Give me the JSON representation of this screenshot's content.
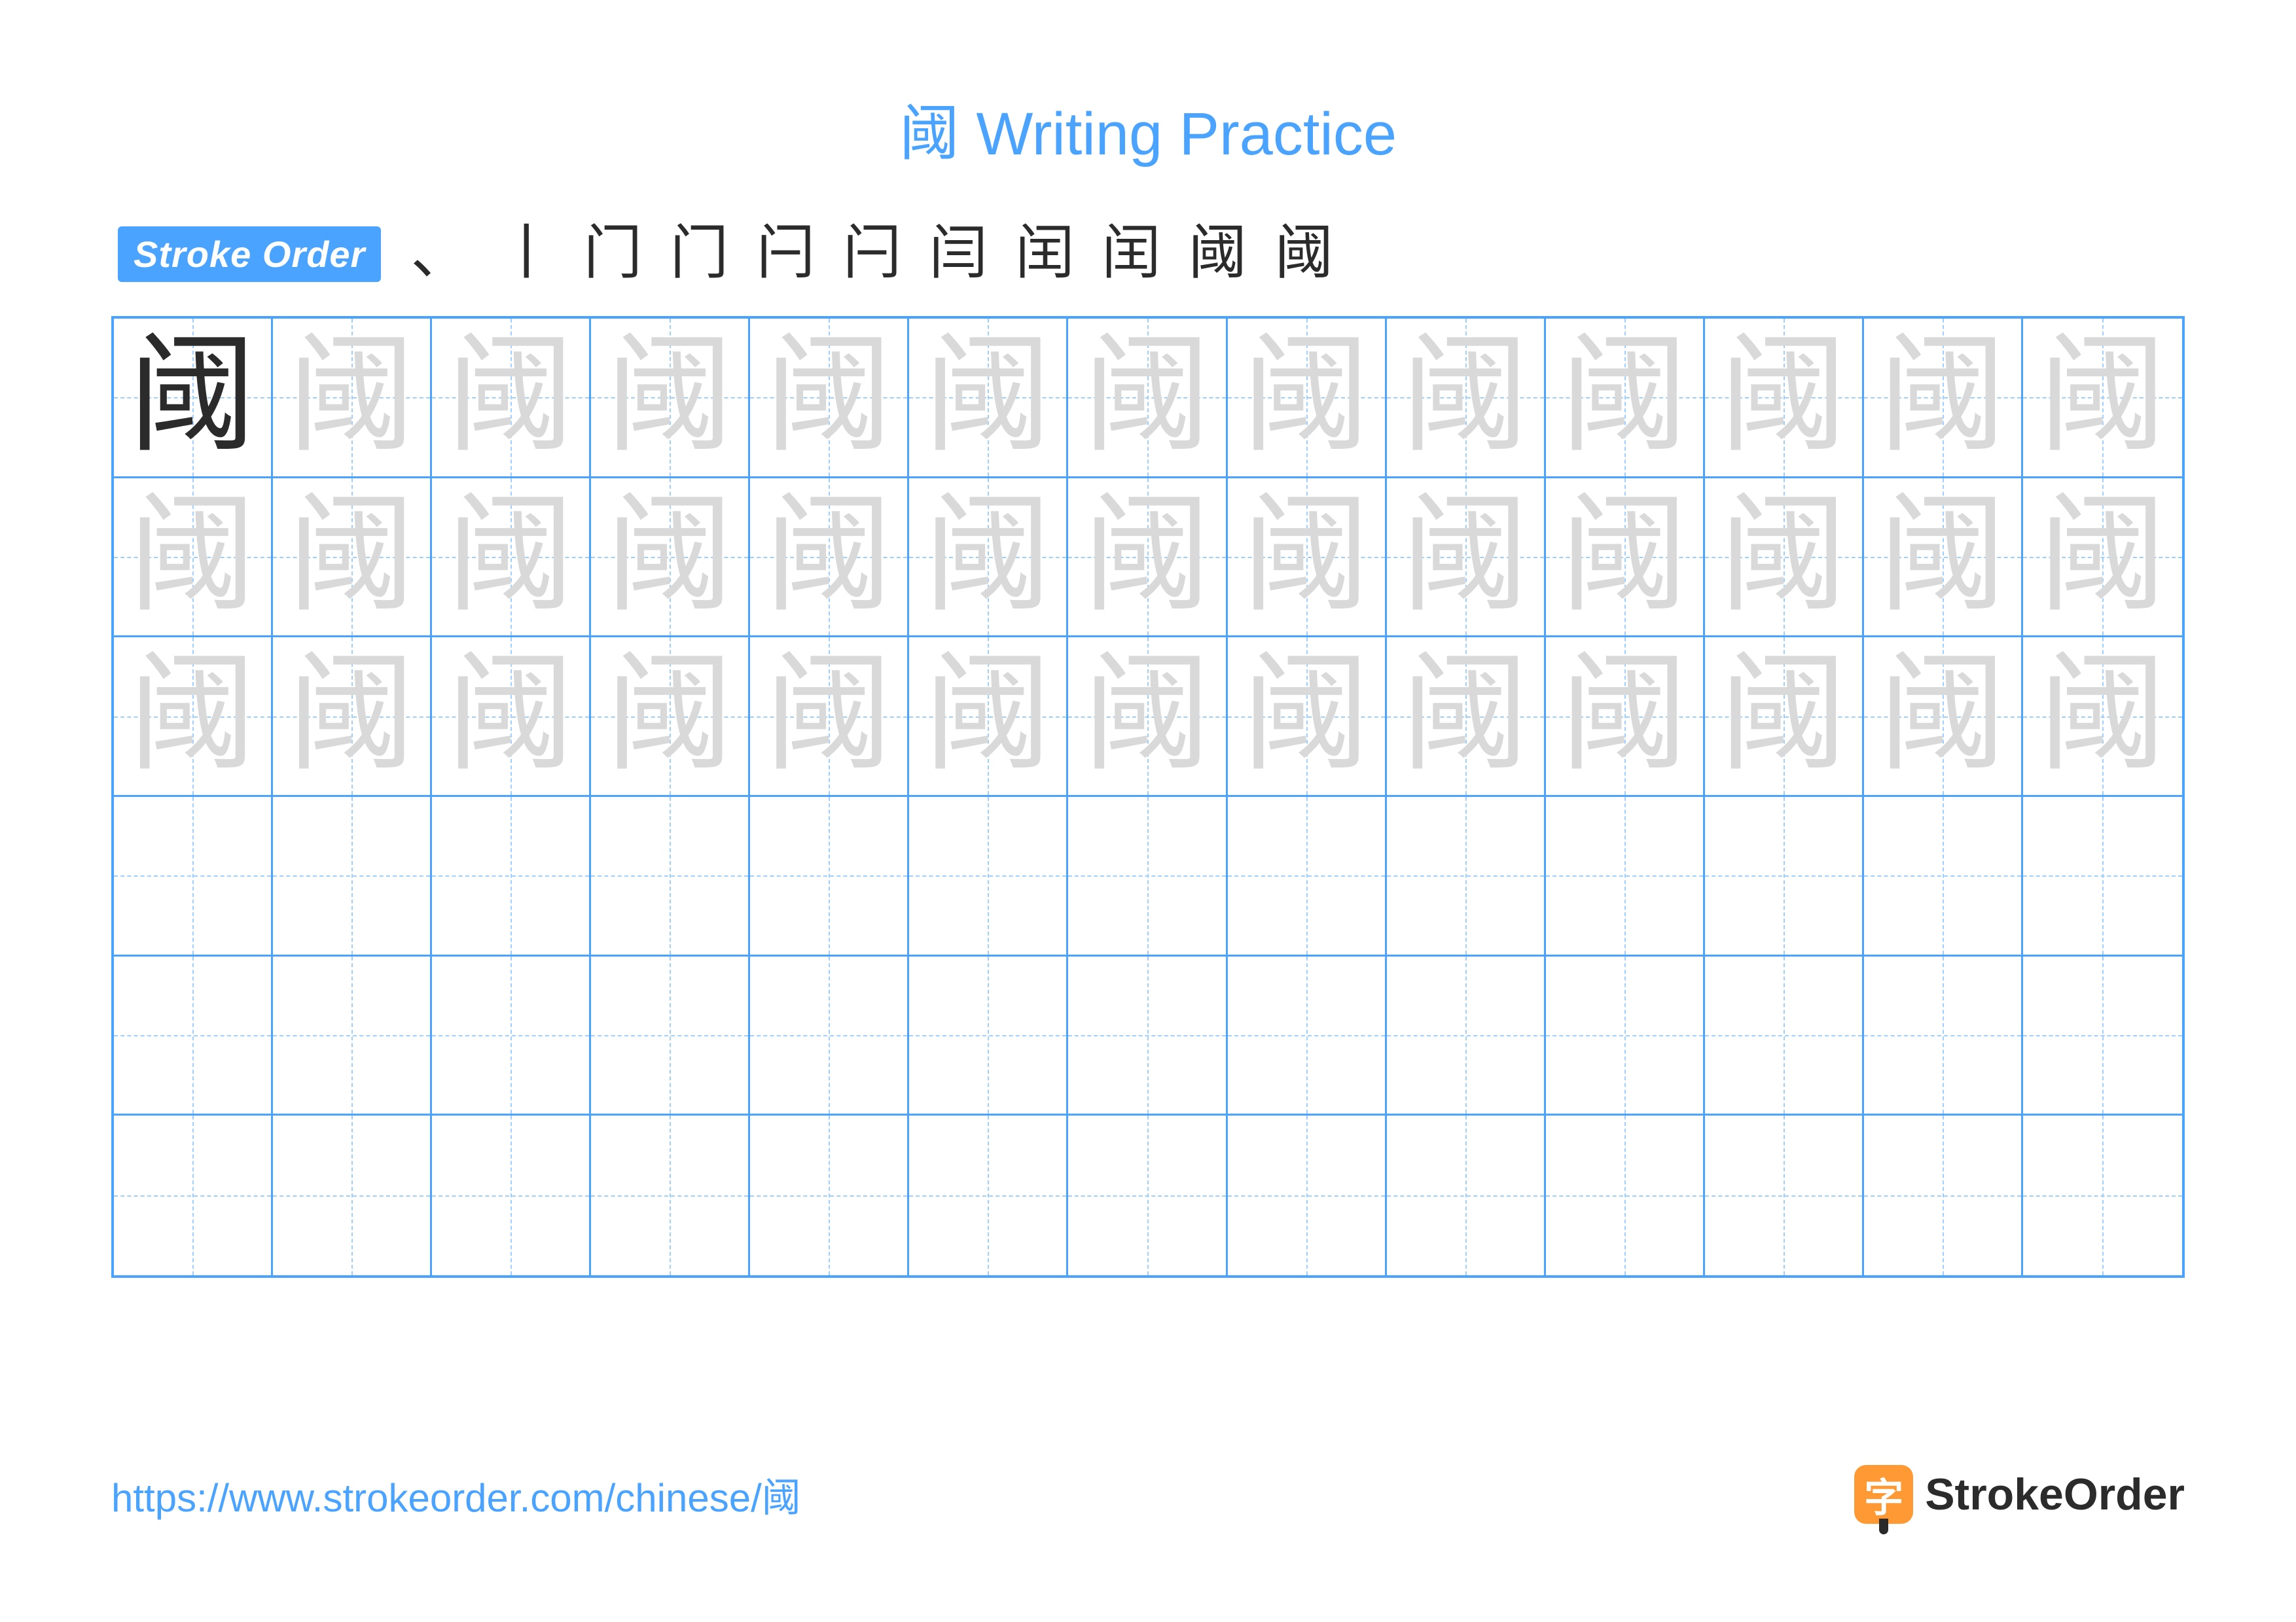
{
  "title": {
    "text": "阈 Writing Practice",
    "color": "#4aa3ff",
    "fontsize": 92
  },
  "badge": {
    "text": "Stroke Order",
    "bg_color": "#4aa3ff",
    "text_color": "#ffffff"
  },
  "stroke_sequence": {
    "color_done": "#2b2b2b",
    "color_new": "#e63946",
    "glyphs": [
      "、",
      "丨",
      "门",
      "门",
      "闩",
      "闩",
      "闫",
      "闰",
      "闰",
      "阈",
      "阈"
    ]
  },
  "practice_character": "阈",
  "grid": {
    "rows": 6,
    "cols": 13,
    "border_color": "#4aa3ff",
    "guide_color": "#9ecfff",
    "main_glyph_color": "#2b2b2b",
    "trace_glyph_color": "#d9d9d9",
    "cells": [
      [
        "main",
        "trace",
        "trace",
        "trace",
        "trace",
        "trace",
        "trace",
        "trace",
        "trace",
        "trace",
        "trace",
        "trace",
        "trace"
      ],
      [
        "trace",
        "trace",
        "trace",
        "trace",
        "trace",
        "trace",
        "trace",
        "trace",
        "trace",
        "trace",
        "trace",
        "trace",
        "trace"
      ],
      [
        "trace",
        "trace",
        "trace",
        "trace",
        "trace",
        "trace",
        "trace",
        "trace",
        "trace",
        "trace",
        "trace",
        "trace",
        "trace"
      ],
      [
        "empty",
        "empty",
        "empty",
        "empty",
        "empty",
        "empty",
        "empty",
        "empty",
        "empty",
        "empty",
        "empty",
        "empty",
        "empty"
      ],
      [
        "empty",
        "empty",
        "empty",
        "empty",
        "empty",
        "empty",
        "empty",
        "empty",
        "empty",
        "empty",
        "empty",
        "empty",
        "empty"
      ],
      [
        "empty",
        "empty",
        "empty",
        "empty",
        "empty",
        "empty",
        "empty",
        "empty",
        "empty",
        "empty",
        "empty",
        "empty",
        "empty"
      ]
    ]
  },
  "footer": {
    "url": "https://www.strokeorder.com/chinese/阈",
    "url_color": "#4aa3ff",
    "logo_char": "字",
    "logo_bg": "#ff9933",
    "logo_text": "StrokeOrder",
    "logo_text_color": "#2b2b2b"
  }
}
